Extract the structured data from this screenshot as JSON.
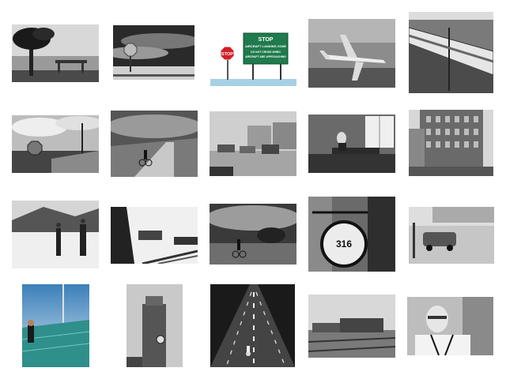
{
  "gallery": {
    "photos": [
      {
        "subject": "beach-palm-tree-bench"
      },
      {
        "subject": "stop-sign-under-cloudy-sky"
      },
      {
        "subject": "stop-sign-aircraft-landing-zone"
      },
      {
        "subject": "airplane-aerial"
      },
      {
        "subject": "train-passing-field"
      },
      {
        "subject": "stop-sign-roadside-clouds"
      },
      {
        "subject": "cyclist-on-dirt-road"
      },
      {
        "subject": "vintage-street-cars"
      },
      {
        "subject": "person-at-desk-office"
      },
      {
        "subject": "city-building-facade"
      },
      {
        "subject": "snowy-village-people"
      },
      {
        "subject": "steam-train-on-tracks"
      },
      {
        "subject": "cyclist-on-wet-road"
      },
      {
        "subject": "hanging-street-clock"
      },
      {
        "subject": "vintage-car-street-corner"
      },
      {
        "subject": "skateboarder-on-bridge"
      },
      {
        "subject": "church-tower-clock"
      },
      {
        "subject": "cyclist-at-night-road"
      },
      {
        "subject": "train-yard-locomotive"
      },
      {
        "subject": "elderly-man-glasses"
      }
    ]
  },
  "signs": {
    "stop_small": "STOP",
    "aircraft_line1": "STOP",
    "aircraft_line2": "AIRCRAFT LANDING ZONE",
    "aircraft_line3": "DO NOT CROSS WHEN",
    "aircraft_line4": "AIRCRAFT ARE APPROACHING",
    "clock_numeral": "316"
  }
}
